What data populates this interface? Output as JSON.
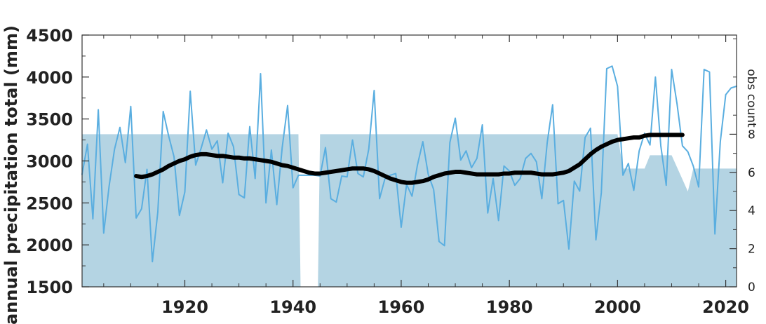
{
  "chart_data": {
    "type": "line",
    "title": "",
    "xlabel": "",
    "ylabel": "annual precipitation total (mm)",
    "y2label": "obs count",
    "xlim": [
      1901,
      2022
    ],
    "ylim": [
      1500,
      4500
    ],
    "y2lim": [
      0,
      13.2
    ],
    "xticks": [
      1920,
      1940,
      1960,
      1980,
      2000,
      2020
    ],
    "yticks": [
      1500,
      2000,
      2500,
      3000,
      3500,
      4000,
      4500
    ],
    "y2ticks": [
      0,
      2,
      4,
      6,
      8
    ],
    "grid": false,
    "legend": "none",
    "colors": {
      "annual": "#5aaee0",
      "smoothed": "#000000",
      "obs_count": "#b4d4e3"
    },
    "obs_count": {
      "x": [
        1901,
        1941,
        1941.4,
        1944.6,
        1945,
        2000,
        2001,
        2002,
        2004,
        2005,
        2006,
        2010,
        2013,
        2014,
        2022
      ],
      "values": [
        8,
        8,
        0,
        0,
        8,
        8,
        6.2,
        6.2,
        6.2,
        6.2,
        6.9,
        6.9,
        5.0,
        6.2,
        6.2
      ]
    },
    "series": [
      {
        "key": "annual",
        "x": [
          1901,
          1902,
          1903,
          1904,
          1905,
          1906,
          1907,
          1908,
          1909,
          1910,
          1911,
          1912,
          1913,
          1914,
          1915,
          1916,
          1917,
          1918,
          1919,
          1920,
          1921,
          1922,
          1923,
          1924,
          1925,
          1926,
          1927,
          1928,
          1929,
          1930,
          1931,
          1932,
          1933,
          1934,
          1935,
          1936,
          1937,
          1938,
          1939,
          1940,
          1941,
          1942,
          1943,
          1944,
          1945,
          1946,
          1947,
          1948,
          1949,
          1950,
          1951,
          1952,
          1953,
          1954,
          1955,
          1956,
          1957,
          1958,
          1959,
          1960,
          1961,
          1962,
          1963,
          1964,
          1965,
          1966,
          1967,
          1968,
          1969,
          1970,
          1971,
          1972,
          1973,
          1974,
          1975,
          1976,
          1977,
          1978,
          1979,
          1980,
          1981,
          1982,
          1983,
          1984,
          1985,
          1986,
          1987,
          1988,
          1989,
          1990,
          1991,
          1992,
          1993,
          1994,
          1995,
          1996,
          1997,
          1998,
          1999,
          2000,
          2001,
          2002,
          2003,
          2004,
          2005,
          2006,
          2007,
          2008,
          2009,
          2010,
          2011,
          2012,
          2013,
          2014,
          2015,
          2016,
          2017,
          2018,
          2019,
          2020,
          2021,
          2022
        ],
        "values": [
          2840,
          3200,
          2310,
          3610,
          2140,
          2700,
          3140,
          3400,
          2980,
          3650,
          2320,
          2430,
          2900,
          1800,
          2390,
          3590,
          3300,
          3050,
          2350,
          2630,
          3830,
          2950,
          3150,
          3370,
          3140,
          3240,
          2740,
          3330,
          3170,
          2600,
          2560,
          3410,
          2790,
          4040,
          2500,
          3130,
          2480,
          3160,
          3660,
          2680,
          2830,
          2830,
          2830,
          2830,
          2820,
          3160,
          2550,
          2510,
          2820,
          2810,
          3250,
          2850,
          2810,
          3140,
          3840,
          2550,
          2790,
          2830,
          2850,
          2210,
          2720,
          2580,
          2950,
          3230,
          2840,
          2660,
          2040,
          1990,
          3220,
          3510,
          3010,
          3120,
          2920,
          3030,
          3430,
          2380,
          2790,
          2290,
          2940,
          2880,
          2710,
          2790,
          3030,
          3090,
          2990,
          2550,
          3220,
          3670,
          2490,
          2530,
          1950,
          2760,
          2640,
          3280,
          3390,
          2060,
          2620,
          4100,
          4130,
          3890,
          2830,
          2970,
          2650,
          3120,
          3330,
          3190,
          4000,
          3180,
          2710,
          4090,
          3680,
          3180,
          3110,
          2940,
          2690,
          4090,
          4060,
          2130,
          3230,
          3790,
          3870,
          3890
        ]
      },
      {
        "key": "smoothed",
        "x": [
          1911,
          1912,
          1913,
          1914,
          1915,
          1916,
          1917,
          1918,
          1919,
          1920,
          1921,
          1922,
          1923,
          1924,
          1925,
          1926,
          1927,
          1928,
          1929,
          1930,
          1931,
          1932,
          1933,
          1934,
          1935,
          1936,
          1937,
          1938,
          1939,
          1940,
          1941,
          1942,
          1943,
          1944,
          1945,
          1946,
          1947,
          1948,
          1949,
          1950,
          1951,
          1952,
          1953,
          1954,
          1955,
          1956,
          1957,
          1958,
          1959,
          1960,
          1961,
          1962,
          1963,
          1964,
          1965,
          1966,
          1967,
          1968,
          1969,
          1970,
          1971,
          1972,
          1973,
          1974,
          1975,
          1976,
          1977,
          1978,
          1979,
          1980,
          1981,
          1982,
          1983,
          1984,
          1985,
          1986,
          1987,
          1988,
          1989,
          1990,
          1991,
          1992,
          1993,
          1994,
          1995,
          1996,
          1997,
          1998,
          1999,
          2000,
          2001,
          2002,
          2003,
          2004,
          2005,
          2006,
          2007,
          2008,
          2009,
          2010,
          2011,
          2012
        ],
        "values": [
          2820,
          2810,
          2820,
          2840,
          2870,
          2900,
          2940,
          2970,
          3000,
          3020,
          3050,
          3070,
          3080,
          3080,
          3070,
          3060,
          3060,
          3050,
          3040,
          3040,
          3030,
          3030,
          3020,
          3010,
          3000,
          2990,
          2970,
          2950,
          2940,
          2920,
          2900,
          2880,
          2860,
          2850,
          2850,
          2860,
          2870,
          2880,
          2890,
          2900,
          2910,
          2910,
          2910,
          2900,
          2880,
          2850,
          2820,
          2790,
          2770,
          2750,
          2740,
          2740,
          2750,
          2760,
          2780,
          2810,
          2830,
          2850,
          2860,
          2870,
          2870,
          2860,
          2850,
          2840,
          2840,
          2840,
          2840,
          2840,
          2850,
          2850,
          2860,
          2860,
          2860,
          2860,
          2850,
          2840,
          2840,
          2840,
          2850,
          2860,
          2880,
          2920,
          2960,
          3020,
          3080,
          3130,
          3170,
          3200,
          3230,
          3250,
          3260,
          3270,
          3280,
          3280,
          3300,
          3310,
          3310,
          3310,
          3310,
          3310,
          3310,
          3310
        ]
      }
    ]
  }
}
